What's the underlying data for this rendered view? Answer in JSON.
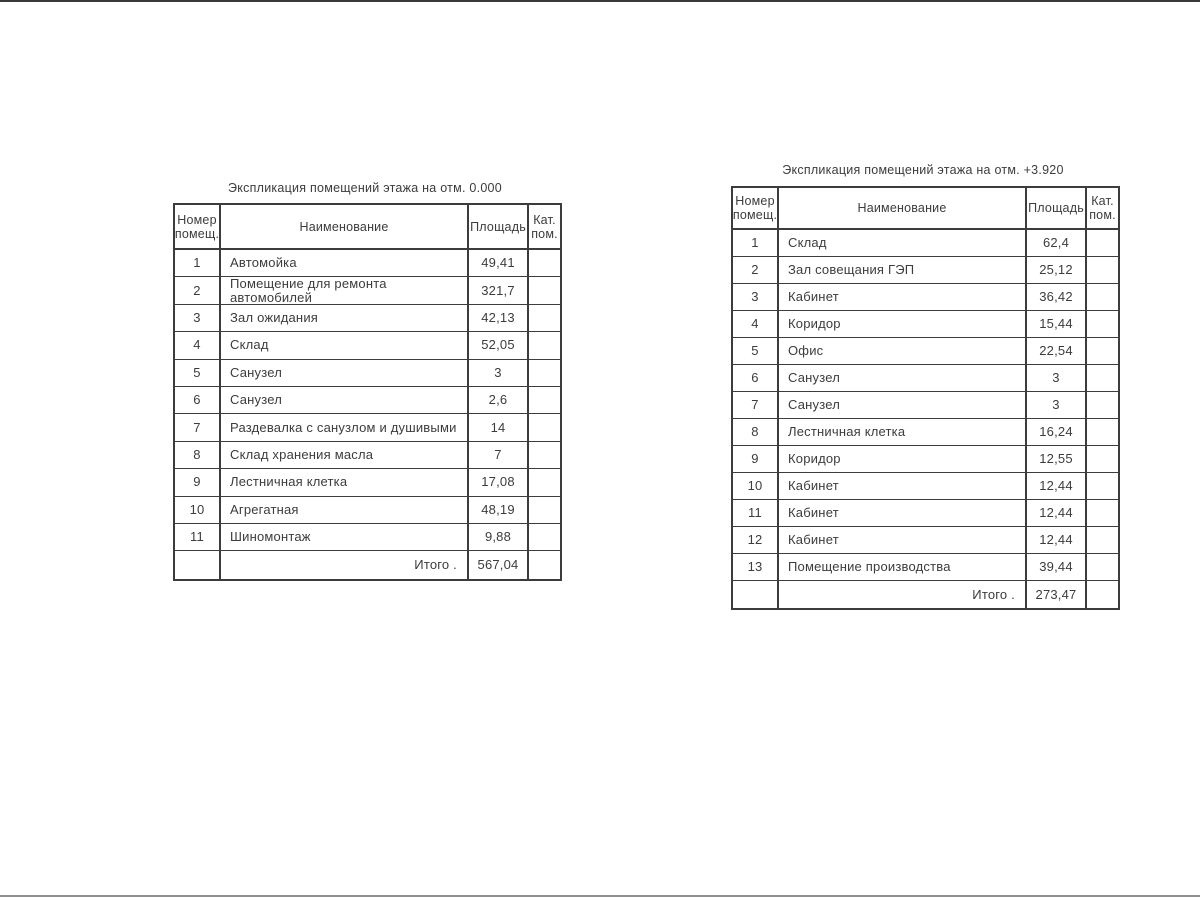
{
  "document": {
    "top_border_color": "#3a3a3a",
    "bottom_border_color": "#8f8f8f",
    "table_line_color": "#3c3c3c",
    "text_color": "#3c3c3c"
  },
  "tables": [
    {
      "title": "Экспликация помещений этажа на отм. 0.000",
      "headers": [
        "Номер помещ.",
        "Наименование",
        "Площадь",
        "Кат. пом."
      ],
      "rows": [
        {
          "num": "1",
          "name": "Автомойка",
          "area": "49,41",
          "cat": ""
        },
        {
          "num": "2",
          "name": "Помещение для ремонта автомобилей",
          "area": "321,7",
          "cat": ""
        },
        {
          "num": "3",
          "name": "Зал ожидания",
          "area": "42,13",
          "cat": ""
        },
        {
          "num": "4",
          "name": "Склад",
          "area": "52,05",
          "cat": ""
        },
        {
          "num": "5",
          "name": "Санузел",
          "area": "3",
          "cat": ""
        },
        {
          "num": "6",
          "name": "Санузел",
          "area": "2,6",
          "cat": ""
        },
        {
          "num": "7",
          "name": "Раздевалка с санузлом и душивыми",
          "area": "14",
          "cat": ""
        },
        {
          "num": "8",
          "name": "Склад хранения масла",
          "area": "7",
          "cat": ""
        },
        {
          "num": "9",
          "name": "Лестничная клетка",
          "area": "17,08",
          "cat": ""
        },
        {
          "num": "10",
          "name": "Агрегатная",
          "area": "48,19",
          "cat": ""
        },
        {
          "num": "11",
          "name": "Шиномонтаж",
          "area": "9,88",
          "cat": ""
        }
      ],
      "total_label": "Итого .",
      "total_value": "567,04"
    },
    {
      "title": "Экспликация помещений этажа на отм. +3.920",
      "headers": [
        "Номер помещ.",
        "Наименование",
        "Площадь",
        "Кат. пом."
      ],
      "rows": [
        {
          "num": "1",
          "name": "Склад",
          "area": "62,4",
          "cat": ""
        },
        {
          "num": "2",
          "name": "Зал совещания ГЭП",
          "area": "25,12",
          "cat": ""
        },
        {
          "num": "3",
          "name": "Кабинет",
          "area": "36,42",
          "cat": ""
        },
        {
          "num": "4",
          "name": "Коридор",
          "area": "15,44",
          "cat": ""
        },
        {
          "num": "5",
          "name": "Офис",
          "area": "22,54",
          "cat": ""
        },
        {
          "num": "6",
          "name": "Санузел",
          "area": "3",
          "cat": ""
        },
        {
          "num": "7",
          "name": "Санузел",
          "area": "3",
          "cat": ""
        },
        {
          "num": "8",
          "name": "Лестничная клетка",
          "area": "16,24",
          "cat": ""
        },
        {
          "num": "9",
          "name": "Коридор",
          "area": "12,55",
          "cat": ""
        },
        {
          "num": "10",
          "name": "Кабинет",
          "area": "12,44",
          "cat": ""
        },
        {
          "num": "11",
          "name": "Кабинет",
          "area": "12,44",
          "cat": ""
        },
        {
          "num": "12",
          "name": "Кабинет",
          "area": "12,44",
          "cat": ""
        },
        {
          "num": "13",
          "name": "Помещение производства",
          "area": "39,44",
          "cat": ""
        }
      ],
      "total_label": "Итого .",
      "total_value": "273,47"
    }
  ]
}
